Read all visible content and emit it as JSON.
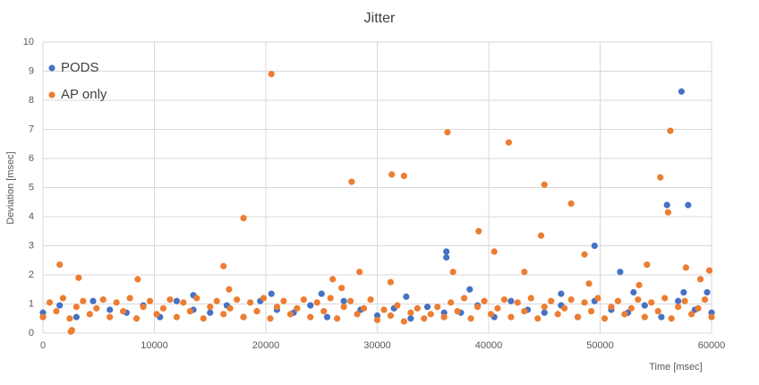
{
  "chart_data": {
    "type": "scatter",
    "title": "Jitter",
    "x_label": "Time [msec]",
    "y_label": "Deviation [msec]",
    "xlim": [
      0,
      60000
    ],
    "ylim": [
      0,
      10
    ],
    "xticks": [
      0,
      10000,
      20000,
      30000,
      40000,
      50000,
      60000
    ],
    "yticks": [
      0,
      1,
      2,
      3,
      4,
      5,
      6,
      7,
      8,
      9,
      10
    ],
    "grid": true,
    "legend": "top-left",
    "series": [
      {
        "name": "PODS",
        "color": "#4472c4",
        "x": [
          0,
          1500,
          3000,
          4500,
          6000,
          7500,
          9000,
          10500,
          12000,
          13500,
          15000,
          16500,
          18000,
          19500,
          21000,
          22500,
          24000,
          25500,
          27000,
          28500,
          30000,
          31500,
          33000,
          34500,
          36000,
          37500,
          39000,
          40500,
          42000,
          43500,
          45000,
          46500,
          48000,
          49500,
          51000,
          52500,
          54000,
          55500,
          57000,
          58500,
          60000,
          57300,
          56000,
          57900,
          49500,
          36200,
          36200,
          51800,
          46500,
          53000,
          57500,
          59600,
          38300,
          32600,
          20500,
          25000,
          13500
        ],
        "values": [
          0.7,
          0.95,
          0.55,
          1.1,
          0.8,
          0.7,
          0.95,
          0.55,
          1.1,
          0.8,
          0.7,
          0.95,
          0.55,
          1.1,
          0.8,
          0.7,
          0.95,
          0.55,
          1.1,
          0.8,
          0.6,
          0.85,
          0.5,
          0.9,
          0.7,
          0.7,
          0.95,
          0.55,
          1.1,
          0.8,
          0.7,
          0.95,
          0.55,
          1.1,
          0.8,
          0.7,
          0.95,
          0.55,
          1.1,
          0.8,
          0.7,
          8.3,
          4.4,
          4.4,
          3.0,
          2.8,
          2.6,
          2.1,
          1.35,
          1.4,
          1.4,
          1.4,
          1.5,
          1.25,
          1.35,
          1.35,
          1.3
        ]
      },
      {
        "name": "AP only",
        "color": "#ed7d31",
        "x": [
          0,
          600,
          1200,
          1800,
          2400,
          3000,
          3600,
          4200,
          4800,
          5400,
          6000,
          6600,
          7200,
          7800,
          8400,
          9000,
          9600,
          10200,
          10800,
          11400,
          12000,
          12600,
          13200,
          13800,
          14400,
          15000,
          15600,
          16200,
          16800,
          17400,
          18000,
          18600,
          19200,
          19800,
          20400,
          21000,
          21600,
          22200,
          22800,
          23400,
          24000,
          24600,
          25200,
          25800,
          26400,
          27000,
          27600,
          28200,
          28800,
          29400,
          30000,
          30600,
          31200,
          31800,
          32400,
          33000,
          33600,
          34200,
          34800,
          35400,
          36000,
          36600,
          37200,
          37800,
          38400,
          39000,
          39600,
          40200,
          40800,
          41400,
          42000,
          42600,
          43200,
          43800,
          44400,
          45000,
          45600,
          46200,
          46800,
          47400,
          48000,
          48600,
          49200,
          49800,
          50400,
          51000,
          51600,
          52200,
          52800,
          53400,
          54000,
          54600,
          55200,
          55800,
          56400,
          57000,
          57600,
          58200,
          58800,
          59400,
          60000,
          1500,
          3200,
          8500,
          16200,
          18000,
          20500,
          26000,
          27700,
          28400,
          31200,
          31300,
          32400,
          36300,
          36800,
          39100,
          40500,
          41800,
          43200,
          44700,
          45000,
          47400,
          48600,
          49000,
          53500,
          54200,
          55400,
          56100,
          56300,
          57700,
          59000,
          59800,
          2500,
          2600,
          16700,
          26800
        ],
        "values": [
          0.55,
          1.05,
          0.75,
          1.2,
          0.5,
          0.9,
          1.1,
          0.65,
          0.85,
          1.15,
          0.55,
          1.05,
          0.75,
          1.2,
          0.5,
          0.9,
          1.1,
          0.65,
          0.85,
          1.15,
          0.55,
          1.05,
          0.75,
          1.2,
          0.5,
          0.9,
          1.1,
          0.65,
          0.85,
          1.15,
          0.55,
          1.05,
          0.75,
          1.2,
          0.5,
          0.9,
          1.1,
          0.65,
          0.85,
          1.15,
          0.55,
          1.05,
          0.75,
          1.2,
          0.5,
          0.9,
          1.1,
          0.65,
          0.85,
          1.15,
          0.45,
          0.8,
          0.6,
          0.95,
          0.4,
          0.7,
          0.85,
          0.5,
          0.65,
          0.9,
          0.55,
          1.05,
          0.75,
          1.2,
          0.5,
          0.9,
          1.1,
          0.65,
          0.85,
          1.15,
          0.55,
          1.05,
          0.75,
          1.2,
          0.5,
          0.9,
          1.1,
          0.65,
          0.85,
          1.15,
          0.55,
          1.05,
          0.75,
          1.2,
          0.5,
          0.9,
          1.1,
          0.65,
          0.85,
          1.15,
          0.55,
          1.05,
          0.75,
          1.2,
          0.5,
          0.9,
          1.1,
          0.65,
          0.85,
          1.15,
          0.55,
          2.35,
          1.9,
          1.85,
          2.3,
          3.95,
          8.9,
          1.85,
          5.2,
          2.1,
          1.75,
          5.45,
          5.4,
          6.9,
          2.1,
          3.5,
          2.8,
          6.55,
          2.1,
          3.35,
          5.1,
          4.45,
          2.7,
          1.7,
          1.65,
          2.35,
          5.35,
          4.15,
          6.95,
          2.25,
          1.85,
          2.15,
          0.05,
          0.1,
          1.5,
          1.55
        ]
      }
    ]
  }
}
